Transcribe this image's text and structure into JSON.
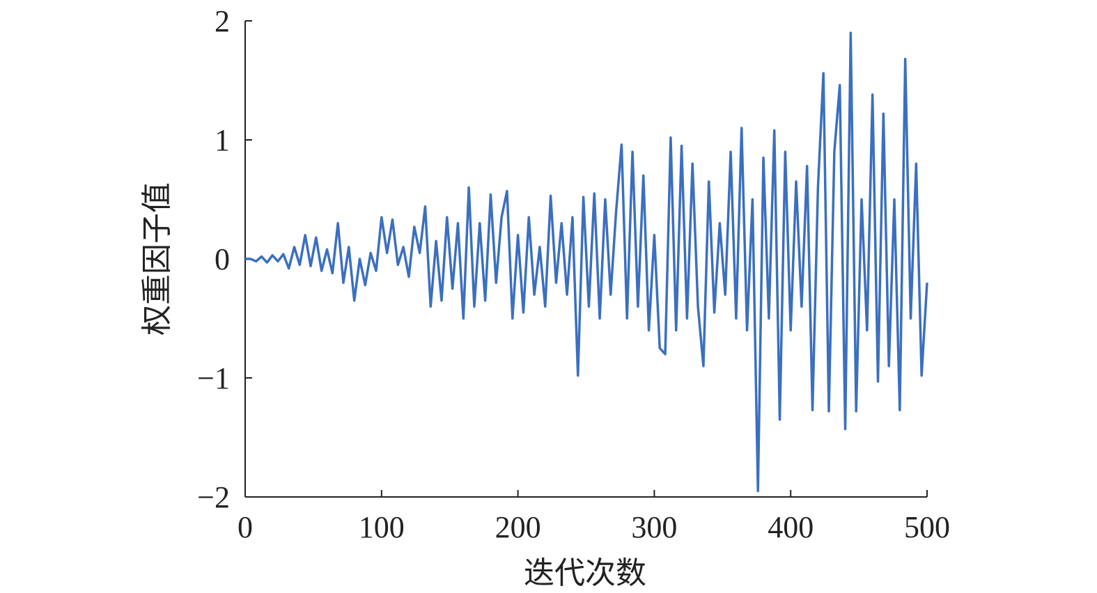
{
  "chart_data": {
    "type": "line",
    "xlabel": "迭代次数",
    "ylabel": "权重因子值",
    "x": [
      0,
      4,
      8,
      12,
      16,
      20,
      24,
      28,
      32,
      36,
      40,
      44,
      48,
      52,
      56,
      60,
      64,
      68,
      72,
      76,
      80,
      84,
      88,
      92,
      96,
      100,
      104,
      108,
      112,
      116,
      120,
      124,
      128,
      132,
      136,
      140,
      144,
      148,
      152,
      156,
      160,
      164,
      168,
      172,
      176,
      180,
      184,
      188,
      192,
      196,
      200,
      204,
      208,
      212,
      216,
      220,
      224,
      228,
      232,
      236,
      240,
      244,
      248,
      252,
      256,
      260,
      264,
      268,
      272,
      276,
      280,
      284,
      288,
      292,
      296,
      300,
      304,
      308,
      312,
      316,
      320,
      324,
      328,
      332,
      336,
      340,
      344,
      348,
      352,
      356,
      360,
      364,
      368,
      372,
      376,
      380,
      384,
      388,
      392,
      396,
      400,
      404,
      408,
      412,
      416,
      420,
      424,
      428,
      432,
      436,
      440,
      444,
      448,
      452,
      456,
      460,
      464,
      468,
      472,
      476,
      480,
      484,
      488,
      492,
      496,
      500
    ],
    "series": [
      {
        "name": "权重因子值",
        "color": "#3b6fc0",
        "values": [
          0,
          0,
          -0.02,
          0.02,
          -0.03,
          0.03,
          -0.02,
          0.04,
          -0.08,
          0.1,
          -0.05,
          0.2,
          -0.06,
          0.18,
          -0.1,
          0.08,
          -0.12,
          0.3,
          -0.2,
          0.1,
          -0.35,
          0,
          -0.22,
          0.05,
          -0.1,
          0.35,
          0.05,
          0.33,
          -0.05,
          0.1,
          -0.15,
          0.27,
          0.05,
          0.44,
          -0.4,
          0.15,
          -0.35,
          0.35,
          -0.25,
          0.3,
          -0.5,
          0.6,
          -0.4,
          0.3,
          -0.35,
          0.54,
          -0.2,
          0.35,
          0.57,
          -0.5,
          0.2,
          -0.45,
          0.35,
          -0.3,
          0.1,
          -0.4,
          0.53,
          -0.2,
          0.3,
          -0.3,
          0.35,
          -0.98,
          0.52,
          -0.4,
          0.55,
          -0.5,
          0.5,
          -0.3,
          0.4,
          0.96,
          -0.5,
          0.9,
          -0.4,
          0.7,
          -0.6,
          0.2,
          -0.75,
          -0.8,
          1.02,
          -0.6,
          0.95,
          -0.5,
          0.8,
          -0.4,
          -0.9,
          0.65,
          -0.45,
          0.3,
          -0.3,
          0.9,
          -0.5,
          1.1,
          -0.6,
          0.5,
          -1.95,
          0.85,
          -0.5,
          1.08,
          -1.35,
          0.9,
          -0.6,
          0.65,
          -0.4,
          0.78,
          -1.27,
          0.6,
          1.56,
          -1.28,
          0.9,
          1.46,
          -1.43,
          1.9,
          -1.28,
          0.5,
          -0.6,
          1.38,
          -1.03,
          1.22,
          -0.9,
          0.5,
          -1.27,
          1.68,
          -0.5,
          0.8,
          -0.98,
          -0.2
        ]
      }
    ],
    "xlim": [
      0,
      500
    ],
    "xticks": [
      0,
      100,
      200,
      300,
      400,
      500
    ],
    "ylim": [
      -2,
      2
    ],
    "yticks": [
      {
        "value": -2,
        "label": "−2"
      },
      {
        "value": -1,
        "label": "−1"
      },
      0,
      1,
      2
    ]
  }
}
